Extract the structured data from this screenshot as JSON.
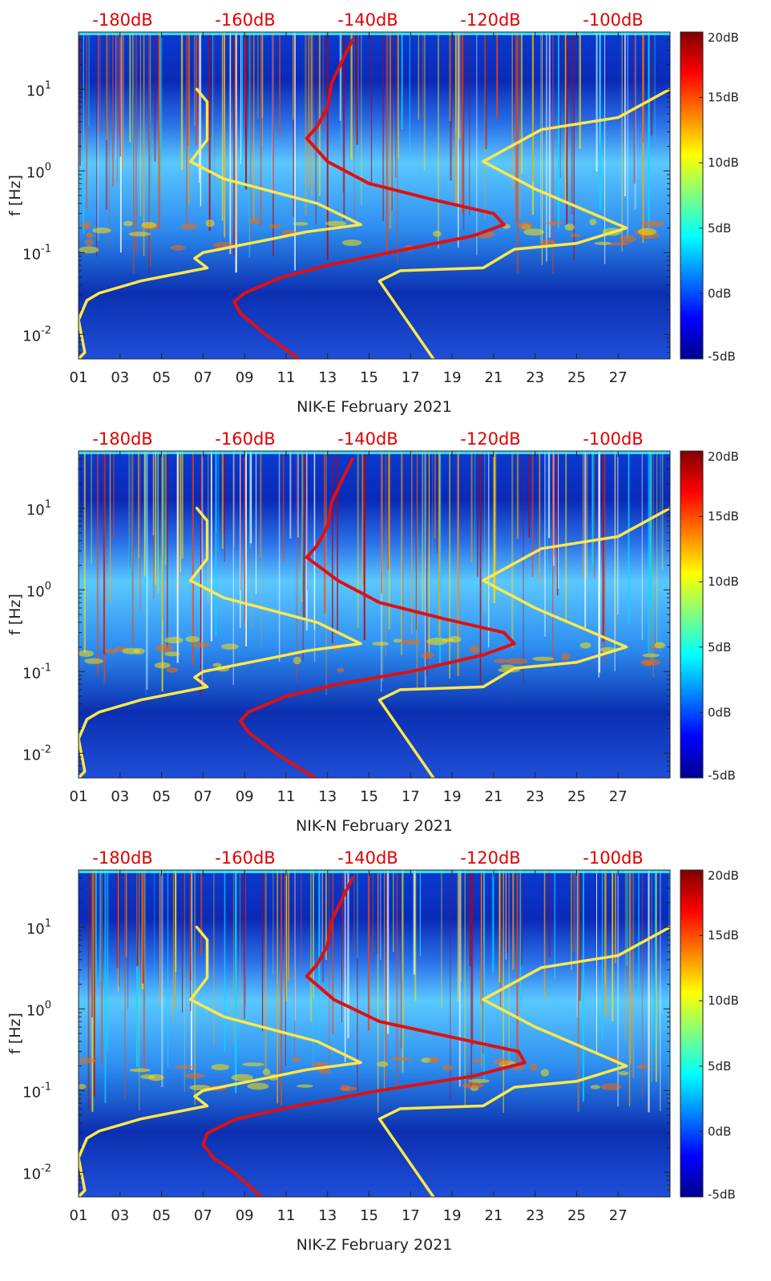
{
  "chart_data": [
    {
      "type": "heatmap",
      "title": "",
      "xlabel": "NIK-E February 2021",
      "ylabel": "f [Hz]",
      "x_ticks": [
        "01",
        "03",
        "05",
        "07",
        "09",
        "11",
        "13",
        "15",
        "17",
        "19",
        "21",
        "23",
        "25",
        "27"
      ],
      "x_range_days": [
        1,
        29.5
      ],
      "y_scale": "log",
      "y_ticks": [
        {
          "v": 0.01,
          "base": "10",
          "exp": "-2"
        },
        {
          "v": 0.1,
          "base": "10",
          "exp": "-1"
        },
        {
          "v": 1,
          "base": "10",
          "exp": "0"
        },
        {
          "v": 10,
          "base": "10",
          "exp": "1"
        }
      ],
      "ylim": [
        0.005,
        50
      ],
      "top_axis_labels": [
        "-180dB",
        "-160dB",
        "-140dB",
        "-120dB",
        "-100dB"
      ],
      "colorbar": {
        "min": -5,
        "max": 20,
        "labels": [
          "20dB",
          "15dB",
          "10dB",
          "5dB",
          "0dB",
          "-5dB"
        ]
      },
      "series": [
        {
          "color": "#ffe84a",
          "points": [
            [
              1,
              0.005
            ],
            [
              1.3,
              0.006
            ],
            [
              1.0,
              0.015
            ],
            [
              1.4,
              0.026
            ],
            [
              2.0,
              0.032
            ],
            [
              4.0,
              0.045
            ],
            [
              7.2,
              0.065
            ],
            [
              6.6,
              0.085
            ],
            [
              7.0,
              0.1
            ],
            [
              10.5,
              0.15
            ],
            [
              12.0,
              0.18
            ],
            [
              14.6,
              0.22
            ],
            [
              12.5,
              0.4
            ],
            [
              8.0,
              0.8
            ],
            [
              6.4,
              1.3
            ],
            [
              7.2,
              2.4
            ],
            [
              7.2,
              7
            ],
            [
              6.7,
              10
            ]
          ]
        },
        {
          "color": "#ffe84a",
          "points": [
            [
              18.1,
              0.005
            ],
            [
              15.5,
              0.045
            ],
            [
              16.5,
              0.06
            ],
            [
              20.5,
              0.065
            ],
            [
              22.0,
              0.11
            ],
            [
              25.0,
              0.13
            ],
            [
              27.4,
              0.2
            ],
            [
              23.0,
              0.6
            ],
            [
              20.5,
              1.3
            ],
            [
              23.3,
              3.2
            ],
            [
              27.0,
              4.5
            ],
            [
              29.5,
              10
            ]
          ]
        },
        {
          "color": "#e01010",
          "points": [
            [
              11.6,
              0.005
            ],
            [
              10.0,
              0.01
            ],
            [
              8.8,
              0.018
            ],
            [
              8.5,
              0.025
            ],
            [
              9.0,
              0.032
            ],
            [
              10.8,
              0.05
            ],
            [
              13.0,
              0.07
            ],
            [
              16.0,
              0.1
            ],
            [
              20.0,
              0.16
            ],
            [
              21.5,
              0.22
            ],
            [
              21.0,
              0.3
            ],
            [
              18.0,
              0.45
            ],
            [
              15.0,
              0.7
            ],
            [
              13.0,
              1.3
            ],
            [
              12.0,
              2.5
            ],
            [
              12.5,
              3.5
            ],
            [
              13.0,
              6
            ],
            [
              13.2,
              12
            ],
            [
              13.8,
              25
            ],
            [
              14.2,
              40
            ]
          ]
        }
      ]
    },
    {
      "type": "heatmap",
      "title": "",
      "xlabel": "NIK-N February 2021",
      "ylabel": "f [Hz]",
      "x_ticks": [
        "01",
        "03",
        "05",
        "07",
        "09",
        "11",
        "13",
        "15",
        "17",
        "19",
        "21",
        "23",
        "25",
        "27"
      ],
      "x_range_days": [
        1,
        29.5
      ],
      "y_scale": "log",
      "y_ticks": [
        {
          "v": 0.01,
          "base": "10",
          "exp": "-2"
        },
        {
          "v": 0.1,
          "base": "10",
          "exp": "-1"
        },
        {
          "v": 1,
          "base": "10",
          "exp": "0"
        },
        {
          "v": 10,
          "base": "10",
          "exp": "1"
        }
      ],
      "ylim": [
        0.005,
        50
      ],
      "top_axis_labels": [
        "-180dB",
        "-160dB",
        "-140dB",
        "-120dB",
        "-100dB"
      ],
      "colorbar": {
        "min": -5,
        "max": 20,
        "labels": [
          "20dB",
          "15dB",
          "10dB",
          "5dB",
          "0dB",
          "-5dB"
        ]
      },
      "series": [
        {
          "color": "#ffe84a",
          "points": [
            [
              1,
              0.005
            ],
            [
              1.3,
              0.006
            ],
            [
              1.0,
              0.015
            ],
            [
              1.4,
              0.026
            ],
            [
              2.0,
              0.032
            ],
            [
              4.0,
              0.045
            ],
            [
              7.2,
              0.065
            ],
            [
              6.6,
              0.085
            ],
            [
              7.0,
              0.1
            ],
            [
              10.5,
              0.15
            ],
            [
              12.0,
              0.18
            ],
            [
              14.6,
              0.22
            ],
            [
              12.5,
              0.4
            ],
            [
              8.0,
              0.8
            ],
            [
              6.4,
              1.3
            ],
            [
              7.2,
              2.4
            ],
            [
              7.2,
              7
            ],
            [
              6.7,
              10
            ]
          ]
        },
        {
          "color": "#ffe84a",
          "points": [
            [
              18.1,
              0.005
            ],
            [
              15.5,
              0.045
            ],
            [
              16.5,
              0.06
            ],
            [
              20.5,
              0.065
            ],
            [
              22.0,
              0.11
            ],
            [
              25.0,
              0.13
            ],
            [
              27.4,
              0.2
            ],
            [
              23.0,
              0.6
            ],
            [
              20.5,
              1.3
            ],
            [
              23.3,
              3.2
            ],
            [
              27.0,
              4.5
            ],
            [
              29.5,
              10
            ]
          ]
        },
        {
          "color": "#e01010",
          "points": [
            [
              12.4,
              0.005
            ],
            [
              10.5,
              0.01
            ],
            [
              9.2,
              0.018
            ],
            [
              8.8,
              0.025
            ],
            [
              9.2,
              0.032
            ],
            [
              11.0,
              0.05
            ],
            [
              13.5,
              0.07
            ],
            [
              17.0,
              0.1
            ],
            [
              20.5,
              0.16
            ],
            [
              22.0,
              0.22
            ],
            [
              21.5,
              0.3
            ],
            [
              18.5,
              0.45
            ],
            [
              15.5,
              0.7
            ],
            [
              13.5,
              1.3
            ],
            [
              12.0,
              2.5
            ],
            [
              12.5,
              3.5
            ],
            [
              13.0,
              6
            ],
            [
              13.2,
              12
            ],
            [
              13.8,
              25
            ],
            [
              14.2,
              40
            ]
          ]
        }
      ]
    },
    {
      "type": "heatmap",
      "title": "",
      "xlabel": "NIK-Z February 2021",
      "ylabel": "f [Hz]",
      "x_ticks": [
        "01",
        "03",
        "05",
        "07",
        "09",
        "11",
        "13",
        "15",
        "17",
        "19",
        "21",
        "23",
        "25",
        "27"
      ],
      "x_range_days": [
        1,
        29.5
      ],
      "y_scale": "log",
      "y_ticks": [
        {
          "v": 0.01,
          "base": "10",
          "exp": "-2"
        },
        {
          "v": 0.1,
          "base": "10",
          "exp": "-1"
        },
        {
          "v": 1,
          "base": "10",
          "exp": "0"
        },
        {
          "v": 10,
          "base": "10",
          "exp": "1"
        }
      ],
      "ylim": [
        0.005,
        50
      ],
      "top_axis_labels": [
        "-180dB",
        "-160dB",
        "-140dB",
        "-120dB",
        "-100dB"
      ],
      "colorbar": {
        "min": -5,
        "max": 20,
        "labels": [
          "20dB",
          "15dB",
          "10dB",
          "5dB",
          "0dB",
          "-5dB"
        ]
      },
      "series": [
        {
          "color": "#ffe84a",
          "points": [
            [
              1,
              0.005
            ],
            [
              1.3,
              0.006
            ],
            [
              1.0,
              0.015
            ],
            [
              1.4,
              0.026
            ],
            [
              2.0,
              0.032
            ],
            [
              4.0,
              0.045
            ],
            [
              7.2,
              0.065
            ],
            [
              6.6,
              0.085
            ],
            [
              7.0,
              0.1
            ],
            [
              10.5,
              0.15
            ],
            [
              12.0,
              0.18
            ],
            [
              14.6,
              0.22
            ],
            [
              12.5,
              0.4
            ],
            [
              8.0,
              0.8
            ],
            [
              6.4,
              1.3
            ],
            [
              7.2,
              2.4
            ],
            [
              7.2,
              7
            ],
            [
              6.7,
              10
            ]
          ]
        },
        {
          "color": "#ffe84a",
          "points": [
            [
              18.1,
              0.005
            ],
            [
              15.5,
              0.045
            ],
            [
              16.5,
              0.06
            ],
            [
              20.5,
              0.065
            ],
            [
              22.0,
              0.11
            ],
            [
              25.0,
              0.13
            ],
            [
              27.4,
              0.2
            ],
            [
              23.0,
              0.6
            ],
            [
              20.5,
              1.3
            ],
            [
              23.3,
              3.2
            ],
            [
              27.0,
              4.5
            ],
            [
              29.5,
              10
            ]
          ]
        },
        {
          "color": "#e01010",
          "points": [
            [
              9.8,
              0.005
            ],
            [
              8.5,
              0.01
            ],
            [
              7.5,
              0.015
            ],
            [
              7.0,
              0.022
            ],
            [
              7.2,
              0.03
            ],
            [
              8.6,
              0.045
            ],
            [
              11.5,
              0.065
            ],
            [
              15.5,
              0.1
            ],
            [
              20.0,
              0.15
            ],
            [
              22.5,
              0.22
            ],
            [
              22.2,
              0.3
            ],
            [
              19.0,
              0.45
            ],
            [
              15.5,
              0.7
            ],
            [
              13.3,
              1.3
            ],
            [
              12.0,
              2.5
            ],
            [
              12.5,
              3.5
            ],
            [
              13.0,
              6
            ],
            [
              13.2,
              12
            ],
            [
              13.8,
              25
            ],
            [
              14.2,
              40
            ]
          ]
        }
      ]
    }
  ]
}
